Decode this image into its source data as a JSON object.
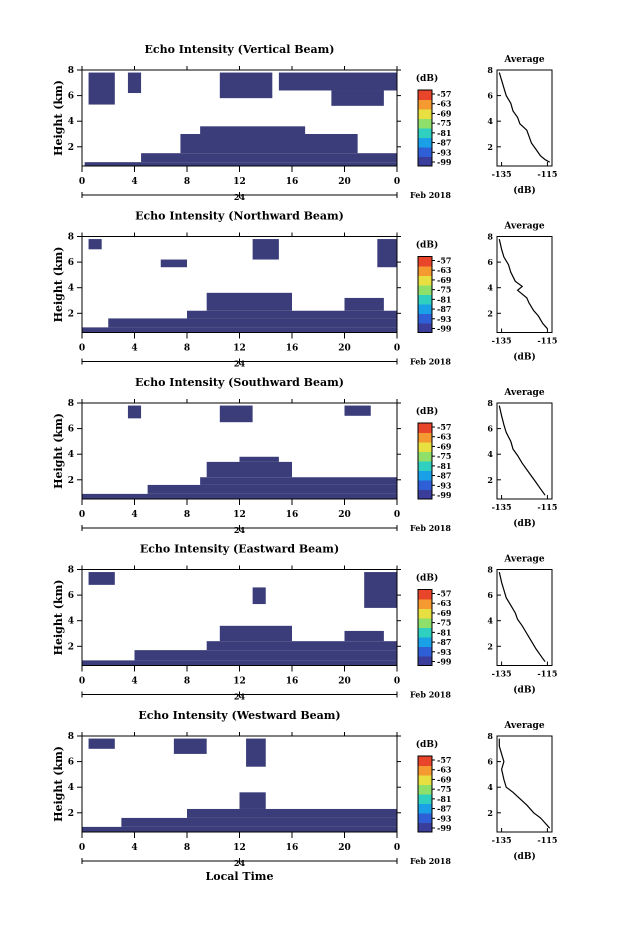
{
  "chart_data": [
    {
      "type": "heatmap",
      "title": "Echo Intensity (Vertical Beam)",
      "ylabel": "Height (km)",
      "xlabel": "",
      "x_ticks": [
        "0",
        "4",
        "8",
        "12",
        "16",
        "20",
        "0"
      ],
      "date_label": "24",
      "month_label": "Feb 2018",
      "y_ticks": [
        "2",
        "4",
        "6",
        "8"
      ],
      "ylim": [
        0.5,
        8
      ],
      "xlim": [
        0,
        24
      ],
      "colorbar": {
        "label": "(dB)",
        "ticks": [
          "-57",
          "-63",
          "-69",
          "-75",
          "-81",
          "-87",
          "-93",
          "-99"
        ],
        "colors": [
          "#3b3d9a",
          "#2f5fd6",
          "#1aa0e6",
          "#30d0c0",
          "#8ee06a",
          "#e8e040",
          "#f49a30",
          "#e8452a"
        ]
      },
      "echo_cover": [
        {
          "x0": 0.2,
          "x1": 24,
          "y0": 0.5,
          "y1": 0.8
        },
        {
          "x0": 4.5,
          "x1": 24,
          "y0": 0.8,
          "y1": 1.5
        },
        {
          "x0": 7.5,
          "x1": 21,
          "y0": 1.5,
          "y1": 3.0
        },
        {
          "x0": 9,
          "x1": 17,
          "y0": 3.0,
          "y1": 3.6
        },
        {
          "x0": 0.5,
          "x1": 2.5,
          "y0": 5.3,
          "y1": 7.8
        },
        {
          "x0": 3.5,
          "x1": 4.5,
          "y0": 6.2,
          "y1": 7.8
        },
        {
          "x0": 15,
          "x1": 24,
          "y0": 6.4,
          "y1": 7.8
        },
        {
          "x0": 10.5,
          "x1": 14.5,
          "y0": 5.8,
          "y1": 7.8
        },
        {
          "x0": 19,
          "x1": 23,
          "y0": 5.2,
          "y1": 6.4
        }
      ],
      "average": {
        "title": "Average",
        "xlabel": "(dB)",
        "xticks": [
          "-135",
          "-115"
        ],
        "y_ticks": [
          "2",
          "4",
          "6",
          "8"
        ],
        "profile": [
          [
            -114,
            0.8
          ],
          [
            -116,
            1.0
          ],
          [
            -118,
            1.3
          ],
          [
            -120,
            1.8
          ],
          [
            -122,
            2.3
          ],
          [
            -123,
            2.8
          ],
          [
            -124,
            3.3
          ],
          [
            -127,
            3.8
          ],
          [
            -128,
            4.3
          ],
          [
            -130,
            4.8
          ],
          [
            -131,
            5.4
          ],
          [
            -133,
            6.0
          ],
          [
            -134,
            6.6
          ],
          [
            -135,
            7.2
          ],
          [
            -136,
            7.8
          ]
        ]
      }
    },
    {
      "type": "heatmap",
      "title": "Echo Intensity (Northward Beam)",
      "ylabel": "Height (km)",
      "xlabel": "",
      "x_ticks": [
        "0",
        "4",
        "8",
        "12",
        "16",
        "20",
        "0"
      ],
      "date_label": "24",
      "month_label": "Feb 2018",
      "y_ticks": [
        "2",
        "4",
        "6",
        "8"
      ],
      "ylim": [
        0.5,
        8
      ],
      "xlim": [
        0,
        24
      ],
      "colorbar": {
        "label": "(dB)",
        "ticks": [
          "-57",
          "-63",
          "-69",
          "-75",
          "-81",
          "-87",
          "-93",
          "-99"
        ],
        "colors": [
          "#3b3d9a",
          "#2f5fd6",
          "#1aa0e6",
          "#30d0c0",
          "#8ee06a",
          "#e8e040",
          "#f49a30",
          "#e8452a"
        ]
      },
      "echo_cover": [
        {
          "x0": 0,
          "x1": 24,
          "y0": 0.5,
          "y1": 0.9
        },
        {
          "x0": 2,
          "x1": 24,
          "y0": 0.9,
          "y1": 1.6
        },
        {
          "x0": 8,
          "x1": 24,
          "y0": 1.6,
          "y1": 2.2
        },
        {
          "x0": 9.5,
          "x1": 16,
          "y0": 2.2,
          "y1": 3.6
        },
        {
          "x0": 20,
          "x1": 23,
          "y0": 2.2,
          "y1": 3.2
        },
        {
          "x0": 6,
          "x1": 8,
          "y0": 5.6,
          "y1": 6.2
        },
        {
          "x0": 13,
          "x1": 15,
          "y0": 6.2,
          "y1": 7.8
        },
        {
          "x0": 22.5,
          "x1": 24,
          "y0": 5.6,
          "y1": 7.8
        },
        {
          "x0": 0.5,
          "x1": 1.5,
          "y0": 7.0,
          "y1": 7.8
        }
      ],
      "average": {
        "title": "Average",
        "xlabel": "(dB)",
        "xticks": [
          "-135",
          "-115"
        ],
        "y_ticks": [
          "2",
          "4",
          "6",
          "8"
        ],
        "profile": [
          [
            -115,
            0.8
          ],
          [
            -117,
            1.2
          ],
          [
            -119,
            1.8
          ],
          [
            -121,
            2.2
          ],
          [
            -123,
            2.8
          ],
          [
            -124,
            3.2
          ],
          [
            -128,
            3.8
          ],
          [
            -126,
            4.1
          ],
          [
            -129,
            4.5
          ],
          [
            -131,
            5.2
          ],
          [
            -132,
            5.8
          ],
          [
            -134,
            6.4
          ],
          [
            -135,
            7.0
          ],
          [
            -136,
            7.8
          ]
        ]
      }
    },
    {
      "type": "heatmap",
      "title": "Echo Intensity (Southward Beam)",
      "ylabel": "Height (km)",
      "xlabel": "",
      "x_ticks": [
        "0",
        "4",
        "8",
        "12",
        "16",
        "20",
        "0"
      ],
      "date_label": "24",
      "month_label": "Feb 2018",
      "y_ticks": [
        "2",
        "4",
        "6",
        "8"
      ],
      "ylim": [
        0.5,
        8
      ],
      "xlim": [
        0,
        24
      ],
      "colorbar": {
        "label": "(dB)",
        "ticks": [
          "-57",
          "-63",
          "-69",
          "-75",
          "-81",
          "-87",
          "-93",
          "-99"
        ],
        "colors": [
          "#3b3d9a",
          "#2f5fd6",
          "#1aa0e6",
          "#30d0c0",
          "#8ee06a",
          "#e8e040",
          "#f49a30",
          "#e8452a"
        ]
      },
      "echo_cover": [
        {
          "x0": 0,
          "x1": 24,
          "y0": 0.5,
          "y1": 0.9
        },
        {
          "x0": 5,
          "x1": 24,
          "y0": 0.9,
          "y1": 1.6
        },
        {
          "x0": 9,
          "x1": 24,
          "y0": 1.6,
          "y1": 2.2
        },
        {
          "x0": 9.5,
          "x1": 16,
          "y0": 2.2,
          "y1": 3.4
        },
        {
          "x0": 12,
          "x1": 15,
          "y0": 3.4,
          "y1": 3.8
        },
        {
          "x0": 3.5,
          "x1": 4.5,
          "y0": 6.8,
          "y1": 7.8
        },
        {
          "x0": 10.5,
          "x1": 13,
          "y0": 6.5,
          "y1": 7.8
        },
        {
          "x0": 20,
          "x1": 22,
          "y0": 7.0,
          "y1": 7.8
        }
      ],
      "average": {
        "title": "Average",
        "xlabel": "(dB)",
        "xticks": [
          "-135",
          "-115"
        ],
        "y_ticks": [
          "2",
          "4",
          "6",
          "8"
        ],
        "profile": [
          [
            -116,
            0.8
          ],
          [
            -118,
            1.3
          ],
          [
            -120,
            1.8
          ],
          [
            -122,
            2.3
          ],
          [
            -124,
            2.8
          ],
          [
            -126,
            3.3
          ],
          [
            -128,
            3.9
          ],
          [
            -130,
            4.4
          ],
          [
            -131,
            5.0
          ],
          [
            -133,
            5.7
          ],
          [
            -134,
            6.3
          ],
          [
            -135,
            7.0
          ],
          [
            -136,
            7.8
          ]
        ]
      }
    },
    {
      "type": "heatmap",
      "title": "Echo Intensity (Eastward Beam)",
      "ylabel": "Height (km)",
      "xlabel": "",
      "x_ticks": [
        "0",
        "4",
        "8",
        "12",
        "16",
        "20",
        "0"
      ],
      "date_label": "24",
      "month_label": "Feb 2018",
      "y_ticks": [
        "2",
        "4",
        "6",
        "8"
      ],
      "ylim": [
        0.5,
        8
      ],
      "xlim": [
        0,
        24
      ],
      "colorbar": {
        "label": "(dB)",
        "ticks": [
          "-57",
          "-63",
          "-69",
          "-75",
          "-81",
          "-87",
          "-93",
          "-99"
        ],
        "colors": [
          "#3b3d9a",
          "#2f5fd6",
          "#1aa0e6",
          "#30d0c0",
          "#8ee06a",
          "#e8e040",
          "#f49a30",
          "#e8452a"
        ]
      },
      "echo_cover": [
        {
          "x0": 0,
          "x1": 24,
          "y0": 0.5,
          "y1": 0.9
        },
        {
          "x0": 4,
          "x1": 24,
          "y0": 0.9,
          "y1": 1.7
        },
        {
          "x0": 9.5,
          "x1": 24,
          "y0": 1.7,
          "y1": 2.4
        },
        {
          "x0": 10.5,
          "x1": 16,
          "y0": 2.4,
          "y1": 3.6
        },
        {
          "x0": 20,
          "x1": 23,
          "y0": 2.4,
          "y1": 3.2
        },
        {
          "x0": 0.5,
          "x1": 2.5,
          "y0": 6.8,
          "y1": 7.8
        },
        {
          "x0": 13,
          "x1": 14,
          "y0": 5.3,
          "y1": 6.6
        },
        {
          "x0": 21.5,
          "x1": 24,
          "y0": 5.0,
          "y1": 7.8
        }
      ],
      "average": {
        "title": "Average",
        "xlabel": "(dB)",
        "xticks": [
          "-135",
          "-115"
        ],
        "y_ticks": [
          "2",
          "4",
          "6",
          "8"
        ],
        "profile": [
          [
            -116,
            0.8
          ],
          [
            -118,
            1.3
          ],
          [
            -120,
            1.8
          ],
          [
            -122,
            2.4
          ],
          [
            -124,
            3.0
          ],
          [
            -126,
            3.6
          ],
          [
            -128,
            4.1
          ],
          [
            -129,
            4.6
          ],
          [
            -131,
            5.2
          ],
          [
            -133,
            5.8
          ],
          [
            -134,
            6.4
          ],
          [
            -135,
            7.0
          ],
          [
            -136,
            7.8
          ]
        ]
      }
    },
    {
      "type": "heatmap",
      "title": "Echo Intensity (Westward Beam)",
      "ylabel": "Height (km)",
      "xlabel": "Local Time",
      "x_ticks": [
        "0",
        "4",
        "8",
        "12",
        "16",
        "20",
        "0"
      ],
      "date_label": "24",
      "month_label": "Feb 2018",
      "y_ticks": [
        "2",
        "4",
        "6",
        "8"
      ],
      "ylim": [
        0.5,
        8
      ],
      "xlim": [
        0,
        24
      ],
      "colorbar": {
        "label": "(dB)",
        "ticks": [
          "-57",
          "-63",
          "-69",
          "-75",
          "-81",
          "-87",
          "-93",
          "-99"
        ],
        "colors": [
          "#3b3d9a",
          "#2f5fd6",
          "#1aa0e6",
          "#30d0c0",
          "#8ee06a",
          "#e8e040",
          "#f49a30",
          "#e8452a"
        ]
      },
      "echo_cover": [
        {
          "x0": 0,
          "x1": 24,
          "y0": 0.5,
          "y1": 0.9
        },
        {
          "x0": 3,
          "x1": 24,
          "y0": 0.9,
          "y1": 1.6
        },
        {
          "x0": 8,
          "x1": 24,
          "y0": 1.6,
          "y1": 2.3
        },
        {
          "x0": 12,
          "x1": 14,
          "y0": 2.3,
          "y1": 3.6
        },
        {
          "x0": 7,
          "x1": 9.5,
          "y0": 6.6,
          "y1": 7.8
        },
        {
          "x0": 12.5,
          "x1": 14,
          "y0": 5.6,
          "y1": 7.8
        },
        {
          "x0": 0.5,
          "x1": 2.5,
          "y0": 7.0,
          "y1": 7.8
        }
      ],
      "average": {
        "title": "Average",
        "xlabel": "(dB)",
        "xticks": [
          "-135",
          "-115"
        ],
        "y_ticks": [
          "2",
          "4",
          "6",
          "8"
        ],
        "profile": [
          [
            -114,
            0.8
          ],
          [
            -116,
            1.2
          ],
          [
            -118,
            1.6
          ],
          [
            -121,
            2.0
          ],
          [
            -124,
            2.6
          ],
          [
            -127,
            3.1
          ],
          [
            -130,
            3.6
          ],
          [
            -133,
            4.0
          ],
          [
            -134,
            4.6
          ],
          [
            -135,
            5.4
          ],
          [
            -134,
            6.0
          ],
          [
            -135,
            6.6
          ],
          [
            -136,
            7.2
          ],
          [
            -136,
            7.8
          ]
        ]
      }
    }
  ]
}
